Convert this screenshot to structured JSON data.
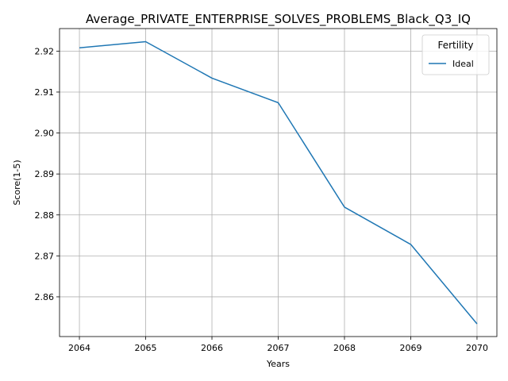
{
  "chart_data": {
    "type": "line",
    "title": "Average_PRIVATE_ENTERPRISE_SOLVES_PROBLEMS_Black_Q3_IQ",
    "xlabel": "Years",
    "ylabel": "Score(1-5)",
    "x": [
      2064,
      2065,
      2066,
      2067,
      2068,
      2069,
      2070
    ],
    "series": [
      {
        "name": "Ideal",
        "color": "#1f77b4",
        "values": [
          2.9208,
          2.9223,
          2.9134,
          2.9074,
          2.8819,
          2.8728,
          2.8534
        ]
      }
    ],
    "xlim": [
      2063.7,
      2070.3
    ],
    "ylim": [
      2.8503,
      2.9255
    ],
    "xticks": [
      2064,
      2065,
      2066,
      2067,
      2068,
      2069,
      2070
    ],
    "yticks": [
      2.86,
      2.87,
      2.88,
      2.89,
      2.9,
      2.91,
      2.92
    ],
    "ytick_labels": [
      "2.86",
      "2.87",
      "2.88",
      "2.89",
      "2.90",
      "2.91",
      "2.92"
    ],
    "grid": true,
    "legend": {
      "title": "Fertility",
      "placement": "top-right"
    }
  }
}
